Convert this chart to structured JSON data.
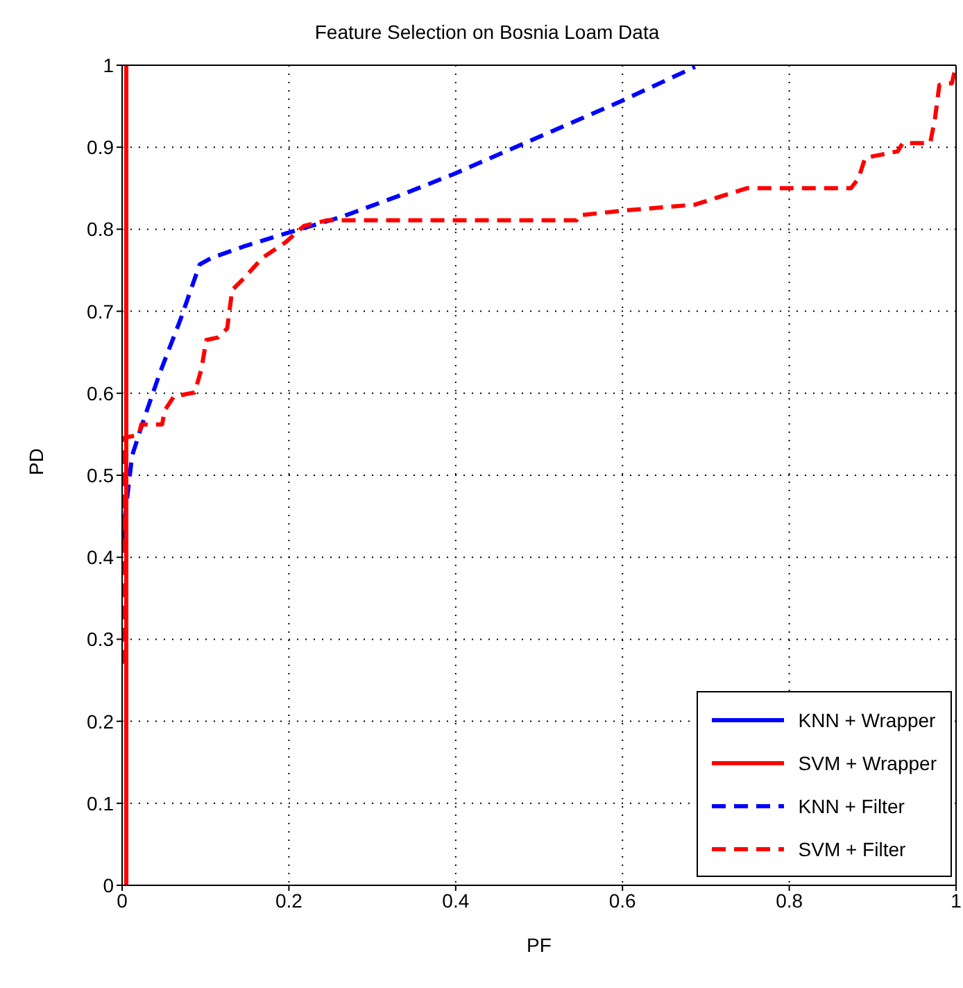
{
  "chart_data": {
    "type": "line",
    "title": "Feature Selection on Bosnia Loam Data",
    "xlabel": "PF",
    "ylabel": "PD",
    "xlim": [
      0,
      1
    ],
    "ylim": [
      0,
      1
    ],
    "xticks": [
      0,
      0.2,
      0.4,
      0.6,
      0.8,
      1
    ],
    "yticks": [
      0,
      0.1,
      0.2,
      0.3,
      0.4,
      0.5,
      0.6,
      0.7,
      0.8,
      0.9,
      1
    ],
    "grid": true,
    "legend": "bottom right",
    "marker": "none",
    "series": [
      {
        "name": "KNN + Wrapper",
        "color": "#0000ff",
        "line_style": "solid",
        "values": [
          null
        ]
      },
      {
        "name": "SVM + Wrapper",
        "color": "#ff0000",
        "line_style": "solid",
        "x": [
          0.005,
          0.005
        ],
        "values": [
          0,
          1
        ]
      },
      {
        "name": "KNN + Filter",
        "color": "#0000ff",
        "line_style": "dashed",
        "x": [
          0,
          0.005,
          0.012,
          0.026,
          0.045,
          0.07,
          0.093,
          0.107,
          0.146,
          0.19,
          0.263,
          0.33,
          0.397,
          0.598,
          0.687
        ],
        "values": [
          0.418,
          0.463,
          0.524,
          0.568,
          0.624,
          0.69,
          0.757,
          0.765,
          0.779,
          0.793,
          0.815,
          0.84,
          0.867,
          0.956,
          0.998
        ]
      },
      {
        "name": "SVM + Filter",
        "color": "#ff0000",
        "line_style": "dashed",
        "x": [
          0.002,
          0.002,
          0.003,
          0.02,
          0.023,
          0.048,
          0.051,
          0.062,
          0.087,
          0.095,
          0.101,
          0.115,
          0.126,
          0.132,
          0.146,
          0.168,
          0.196,
          0.218,
          0.246,
          0.545,
          0.548,
          0.604,
          0.687,
          0.749,
          0.874,
          0.883,
          0.891,
          0.93,
          0.936,
          0.969,
          0.975,
          0.98,
          0.995,
          1
        ],
        "values": [
          0.27,
          0.53,
          0.546,
          0.549,
          0.562,
          0.562,
          0.579,
          0.596,
          0.601,
          0.629,
          0.665,
          0.668,
          0.679,
          0.726,
          0.74,
          0.765,
          0.784,
          0.804,
          0.811,
          0.811,
          0.817,
          0.823,
          0.83,
          0.85,
          0.85,
          0.862,
          0.887,
          0.895,
          0.905,
          0.905,
          0.937,
          0.976,
          0.978,
          1
        ]
      }
    ]
  }
}
